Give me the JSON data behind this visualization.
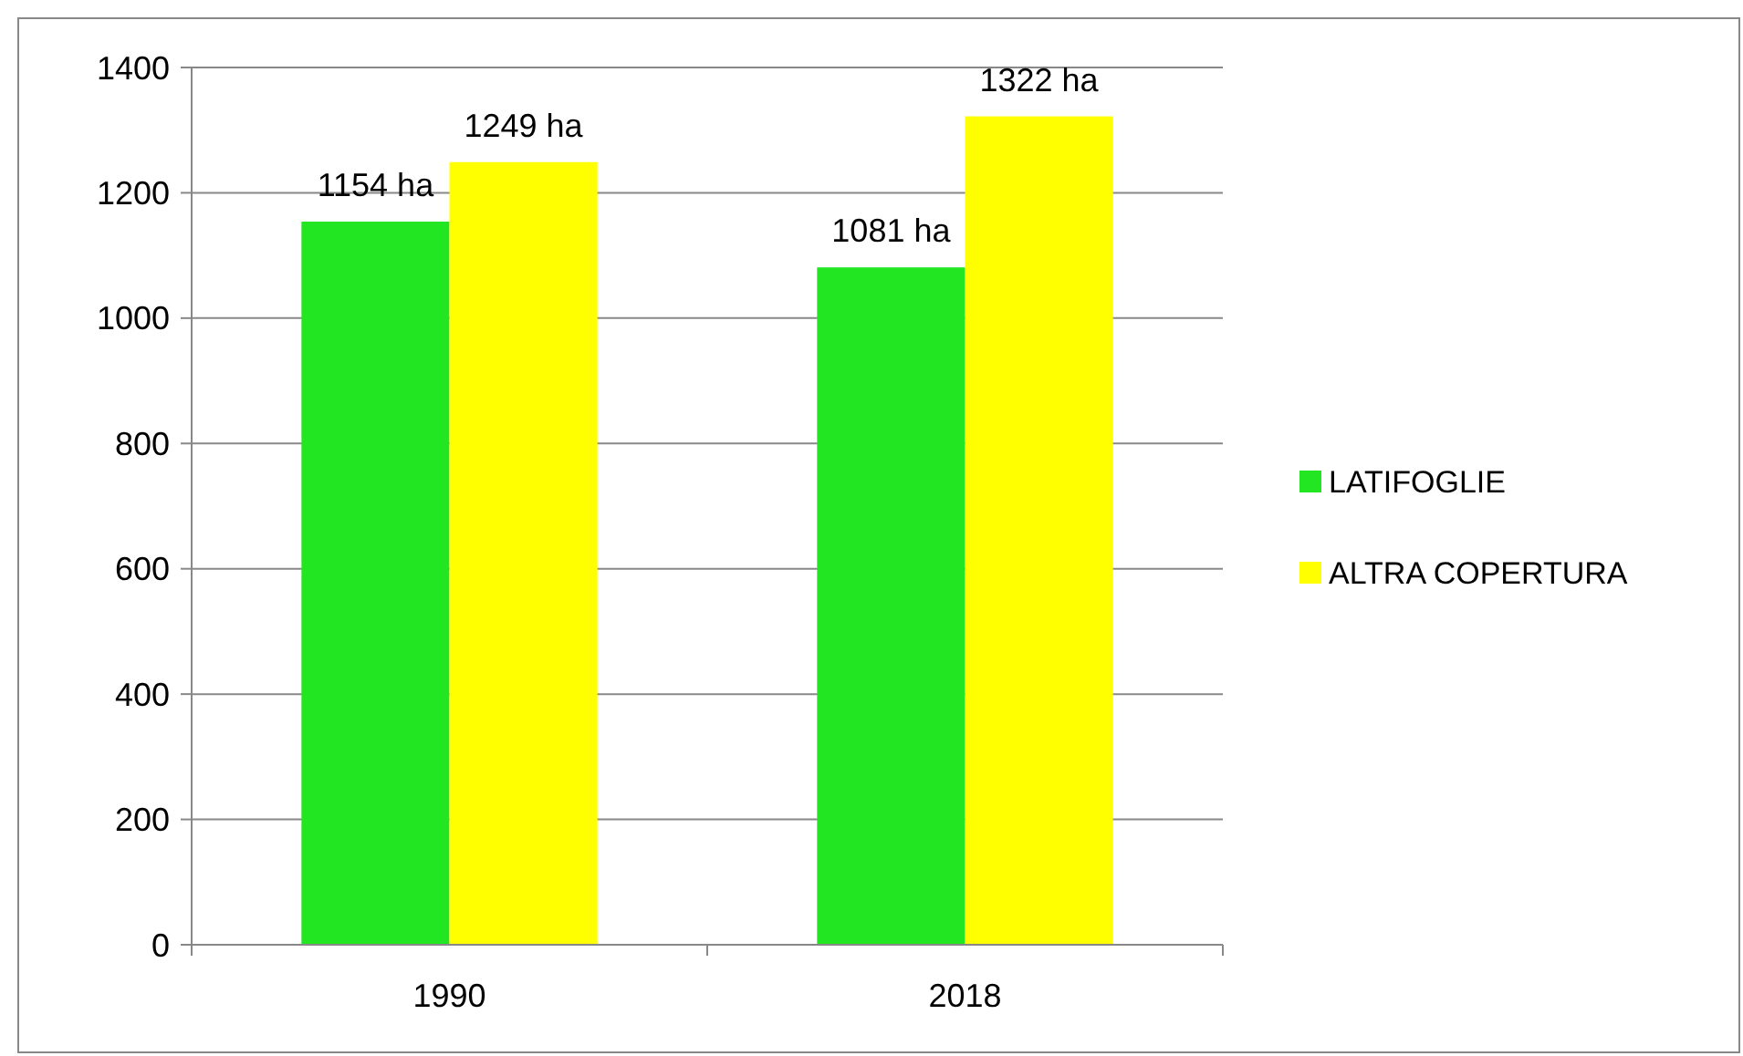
{
  "chart_data": {
    "type": "bar",
    "categories": [
      "1990",
      "2018"
    ],
    "series": [
      {
        "name": "LATIFOGLIE",
        "color": "#22e622",
        "values": [
          1154,
          1081
        ],
        "value_labels": [
          "1154 ha",
          "1081 ha"
        ]
      },
      {
        "name": "ALTRA COPERTURA",
        "color": "#ffff00",
        "values": [
          1249,
          1322
        ],
        "value_labels": [
          "1249 ha",
          "1322 ha"
        ]
      }
    ],
    "ylim": [
      0,
      1400
    ],
    "yticks": [
      0,
      200,
      400,
      600,
      800,
      1000,
      1200,
      1400
    ],
    "grid": "y",
    "legend": "right"
  }
}
